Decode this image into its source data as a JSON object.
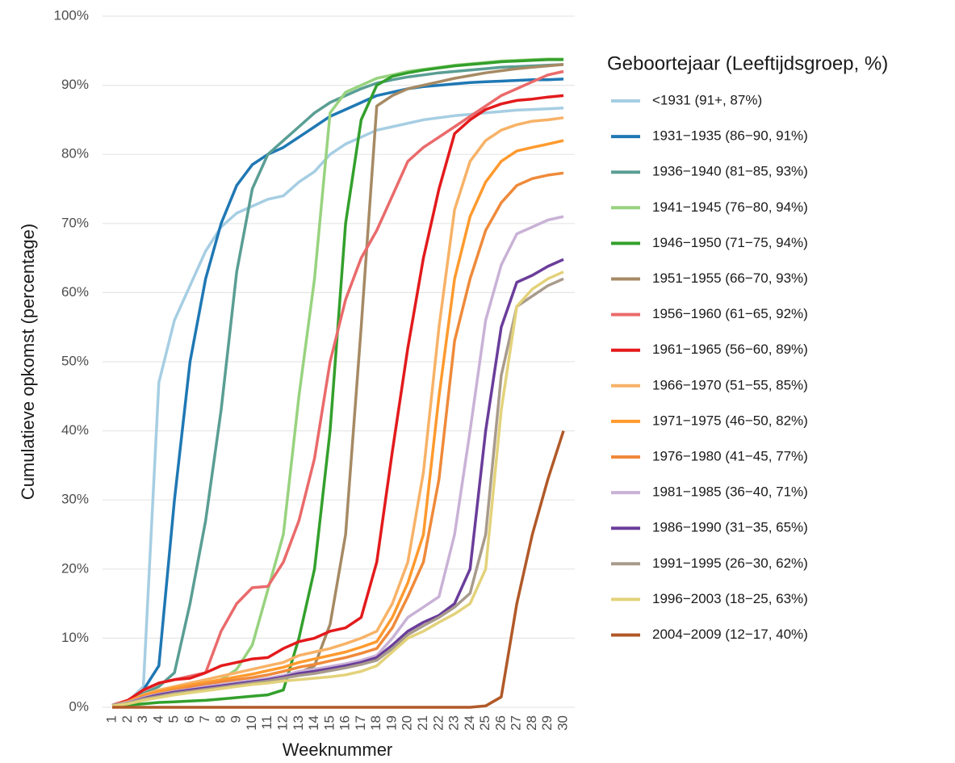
{
  "chart_data": {
    "type": "line",
    "x_label": "Weeknummer",
    "y_label": "Cumulatieve opkomst (percentage)",
    "legend_title": "Geboortejaar (Leeftijdsgroep, %)",
    "legend_position": "right",
    "grid": true,
    "categories": [
      "1",
      "2",
      "3",
      "4",
      "5",
      "6",
      "7",
      "8",
      "9",
      "10",
      "11",
      "12",
      "13",
      "14",
      "15",
      "16",
      "17",
      "18",
      "19",
      "20",
      "21",
      "22",
      "23",
      "24",
      "25",
      "26",
      "27",
      "28",
      "29",
      "30"
    ],
    "ylim": [
      0,
      100
    ],
    "yticks": [
      {
        "value": 0,
        "label": "0%"
      },
      {
        "value": 10,
        "label": "10%"
      },
      {
        "value": 20,
        "label": "20%"
      },
      {
        "value": 30,
        "label": "30%"
      },
      {
        "value": 40,
        "label": "40%"
      },
      {
        "value": 50,
        "label": "50%"
      },
      {
        "value": 60,
        "label": "60%"
      },
      {
        "value": 70,
        "label": "70%"
      },
      {
        "value": 80,
        "label": "80%"
      },
      {
        "value": 90,
        "label": "90%"
      },
      {
        "value": 100,
        "label": "100%"
      }
    ],
    "series": [
      {
        "name": "<1931 (91+, 87%)",
        "color": "#a6cee3",
        "values": [
          0.3,
          0.8,
          3,
          47,
          56,
          61,
          66,
          69.5,
          71.5,
          72.5,
          73.5,
          74,
          76,
          77.5,
          80,
          81.5,
          82.5,
          83.5,
          84,
          84.5,
          85,
          85.3,
          85.6,
          85.8,
          86,
          86.2,
          86.4,
          86.5,
          86.6,
          86.7
        ]
      },
      {
        "name": "1931−1935 (86−90, 91%)",
        "color": "#1f78b4",
        "values": [
          0.3,
          0.8,
          2.5,
          6,
          30,
          50,
          62,
          70,
          75.5,
          78.5,
          80,
          81,
          82.5,
          84,
          85.5,
          86.5,
          87.5,
          88.5,
          89,
          89.5,
          89.8,
          90,
          90.2,
          90.4,
          90.5,
          90.6,
          90.7,
          90.8,
          90.8,
          90.9
        ]
      },
      {
        "name": "1936−1940 (81−85, 93%)",
        "color": "#5a9e94",
        "values": [
          0.3,
          0.8,
          2,
          3,
          5,
          15,
          27,
          43,
          63,
          75,
          80,
          82,
          84,
          86,
          87.5,
          88.5,
          89.5,
          90.3,
          90.8,
          91.2,
          91.5,
          91.8,
          92,
          92.2,
          92.4,
          92.6,
          92.7,
          92.8,
          92.9,
          93
        ]
      },
      {
        "name": "1941−1945 (76−80, 94%)",
        "color": "#98d37f",
        "values": [
          0.2,
          0.5,
          1,
          1.5,
          2,
          2.5,
          3,
          4,
          5.5,
          9,
          17,
          25,
          45,
          62,
          86,
          89,
          90,
          91,
          91.5,
          92,
          92.3,
          92.6,
          92.9,
          93.1,
          93.3,
          93.5,
          93.6,
          93.7,
          93.8,
          93.8
        ]
      },
      {
        "name": "1946−1950 (71−75, 94%)",
        "color": "#33a02c",
        "values": [
          0.2,
          0.3,
          0.5,
          0.7,
          0.8,
          0.9,
          1,
          1.2,
          1.4,
          1.6,
          1.8,
          2.5,
          10,
          20,
          40,
          70,
          85,
          90,
          91.3,
          91.8,
          92.2,
          92.5,
          92.8,
          93,
          93.2,
          93.4,
          93.5,
          93.6,
          93.7,
          93.7
        ]
      },
      {
        "name": "1951−1955 (66−70, 93%)",
        "color": "#a68a64",
        "values": [
          0.2,
          0.5,
          1,
          1.5,
          2,
          2.3,
          2.6,
          3,
          3.3,
          3.6,
          4,
          4.5,
          5,
          6,
          12,
          25,
          55,
          87,
          88.5,
          89.5,
          90,
          90.5,
          91,
          91.4,
          91.8,
          92.1,
          92.4,
          92.6,
          92.8,
          93
        ]
      },
      {
        "name": "1956−1960 (61−65, 92%)",
        "color": "#ea6a6b",
        "values": [
          0.3,
          1,
          2.5,
          3.5,
          4,
          4.5,
          5,
          11,
          15,
          17.3,
          17.5,
          21,
          27,
          36,
          50,
          59,
          65,
          69,
          74,
          79,
          81,
          82.5,
          84,
          85.5,
          87,
          88.5,
          89.5,
          90.5,
          91.5,
          92
        ]
      },
      {
        "name": "1961−1965 (56−60, 89%)",
        "color": "#e31a1c",
        "values": [
          0.3,
          1,
          2.5,
          3.5,
          4,
          4.2,
          5,
          6,
          6.5,
          7,
          7.2,
          8.5,
          9.5,
          10,
          11,
          11.5,
          13,
          21,
          37,
          52,
          65,
          75,
          83,
          85,
          86.5,
          87.3,
          87.8,
          88,
          88.3,
          88.5
        ]
      },
      {
        "name": "1966−1970 (51−55, 85%)",
        "color": "#f7b267",
        "values": [
          0.3,
          0.8,
          1.8,
          2.5,
          3,
          3.5,
          4,
          4.5,
          5,
          5.5,
          6,
          6.5,
          7.5,
          8,
          8.5,
          9.2,
          10,
          11,
          15,
          21,
          34,
          55,
          72,
          79,
          82,
          83.5,
          84.3,
          84.8,
          85,
          85.3
        ]
      },
      {
        "name": "1971−1975 (46−50, 82%)",
        "color": "#ff9a2e",
        "values": [
          0.3,
          0.8,
          1.7,
          2.3,
          2.8,
          3.2,
          3.6,
          4,
          4.4,
          4.8,
          5.3,
          5.8,
          6.5,
          7,
          7.5,
          8,
          8.7,
          9.5,
          13,
          18,
          25,
          45,
          62,
          71,
          76,
          79,
          80.5,
          81,
          81.5,
          82
        ]
      },
      {
        "name": "1976−1980 (41−45, 77%)",
        "color": "#ef8a3a",
        "values": [
          0.3,
          0.7,
          1.5,
          2,
          2.5,
          2.9,
          3.3,
          3.7,
          4,
          4.3,
          4.7,
          5.2,
          5.8,
          6.2,
          6.7,
          7.2,
          7.8,
          8.5,
          11.5,
          16,
          21,
          33,
          53,
          62,
          69,
          73,
          75.5,
          76.5,
          77,
          77.3
        ]
      },
      {
        "name": "1981−1985 (36−40, 71%)",
        "color": "#c9b2d6",
        "values": [
          0.3,
          0.7,
          1.4,
          1.9,
          2.3,
          2.6,
          3,
          3.3,
          3.6,
          3.9,
          4.2,
          4.6,
          5.2,
          5.5,
          5.9,
          6.3,
          6.8,
          7.5,
          10,
          13,
          14.5,
          16,
          25,
          40,
          56,
          64,
          68.5,
          69.5,
          70.5,
          71
        ]
      },
      {
        "name": "1986−1990 (31−35, 65%)",
        "color": "#6a3d9a",
        "values": [
          0.3,
          0.6,
          1.3,
          1.8,
          2.2,
          2.5,
          2.8,
          3.1,
          3.4,
          3.7,
          4,
          4.4,
          4.9,
          5.2,
          5.6,
          6,
          6.5,
          7.2,
          9,
          11,
          12.3,
          13.3,
          15,
          20,
          40,
          55,
          61.5,
          62.5,
          63.8,
          64.8
        ]
      },
      {
        "name": "1991−1995 (26−30, 62%)",
        "color": "#a89b8c",
        "values": [
          0.3,
          0.6,
          1.2,
          1.6,
          2,
          2.3,
          2.6,
          2.9,
          3.2,
          3.5,
          3.8,
          4.2,
          4.6,
          4.9,
          5.3,
          5.7,
          6.2,
          6.8,
          8.5,
          10.5,
          11.8,
          13,
          14.5,
          16.5,
          25,
          48,
          58,
          59.5,
          61,
          62
        ]
      },
      {
        "name": "1996−2003 (18−25, 63%)",
        "color": "#e3d27a",
        "values": [
          0.2,
          0.5,
          1,
          1.4,
          1.8,
          2.1,
          2.4,
          2.7,
          3,
          3.3,
          3.5,
          3.8,
          4,
          4.2,
          4.4,
          4.7,
          5.2,
          6,
          8,
          10,
          11,
          12.3,
          13.5,
          15,
          20,
          43,
          58,
          60.5,
          62,
          63
        ]
      },
      {
        "name": "2004−2009 (12−17, 40%)",
        "color": "#b15928",
        "values": [
          0,
          0,
          0,
          0,
          0,
          0,
          0,
          0,
          0,
          0,
          0,
          0,
          0,
          0,
          0,
          0,
          0,
          0,
          0,
          0,
          0,
          0,
          0,
          0,
          0.2,
          1.5,
          15,
          25,
          33,
          40
        ]
      }
    ]
  }
}
